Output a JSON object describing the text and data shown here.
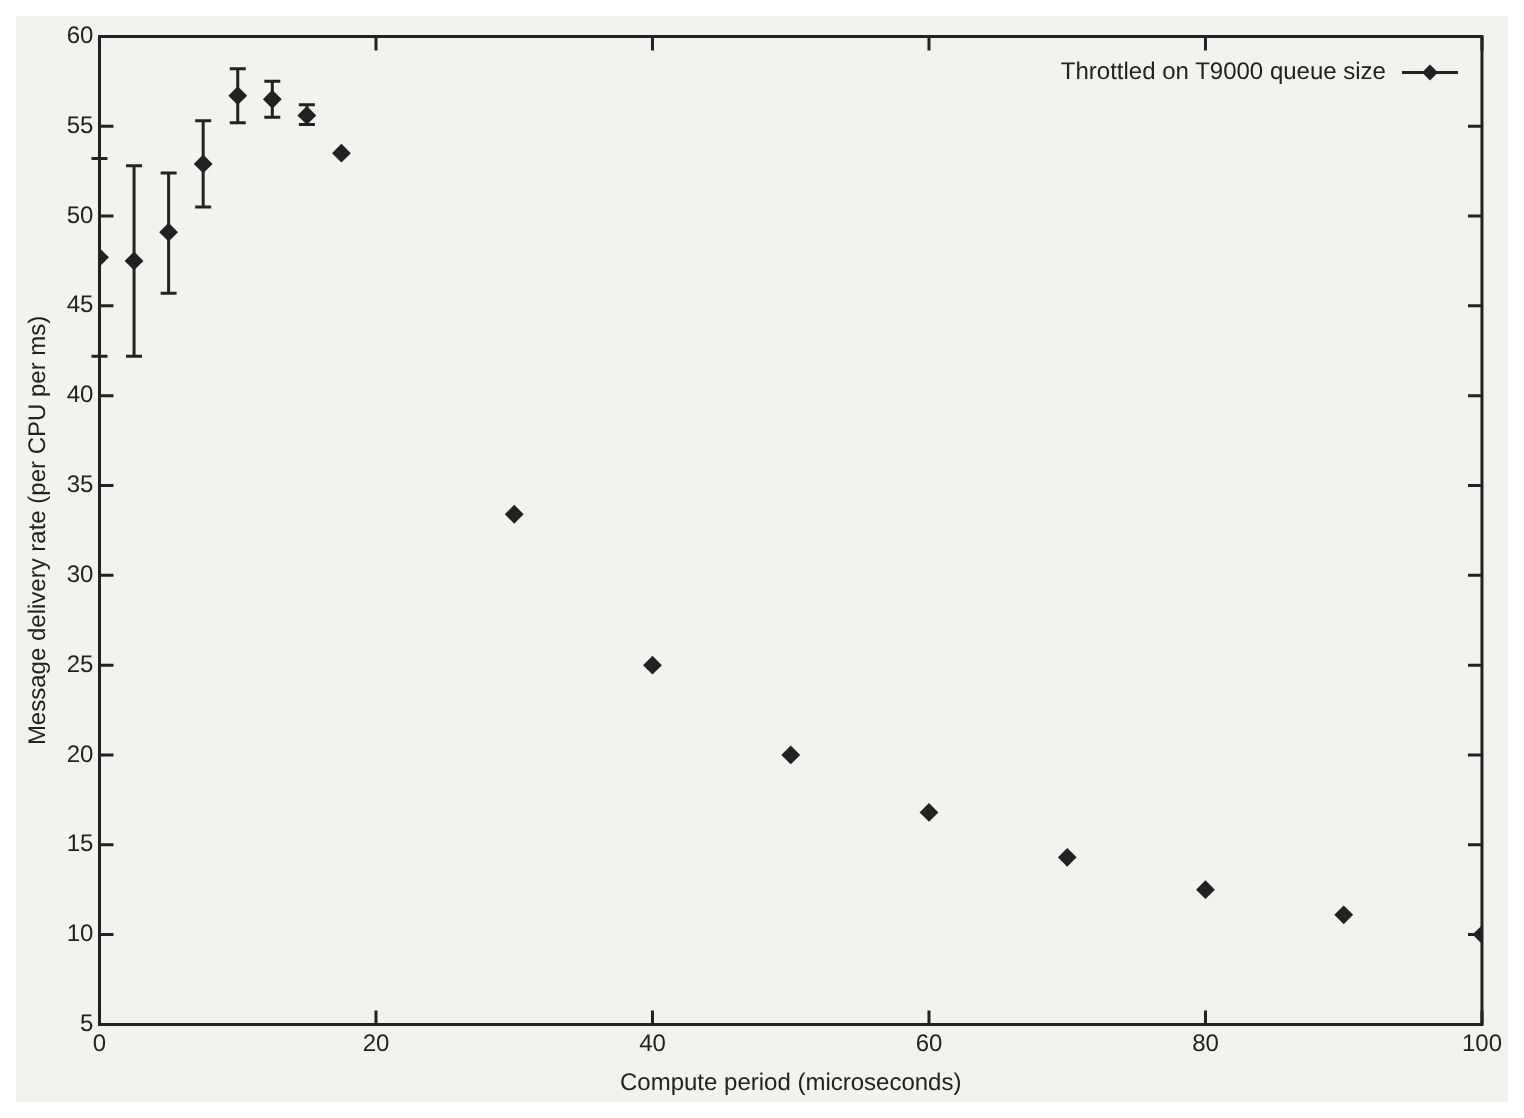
{
  "chart_data": {
    "type": "scatter",
    "xlabel": "Compute period (microseconds)",
    "ylabel": "Message delivery rate (per CPU per ms)",
    "x": [
      0,
      2.5,
      5,
      7.5,
      10,
      12.5,
      15,
      17.5,
      30,
      40,
      50,
      60,
      70,
      80,
      90,
      100
    ],
    "series": [
      {
        "name": "Throttled on T9000 queue size",
        "color": "#222222",
        "values": [
          47.7,
          47.5,
          49.1,
          52.9,
          56.7,
          56.5,
          55.6,
          53.5,
          33.4,
          25,
          20,
          16.8,
          14.3,
          12.5,
          11.1,
          10
        ],
        "errors": [
          5.5,
          5.3,
          [
            45.7,
            52.4
          ],
          [
            50.5,
            55.3
          ],
          [
            55.2,
            58.2
          ],
          [
            55.5,
            57.5
          ],
          [
            55.1,
            56.2
          ],
          null,
          null,
          null,
          null,
          null,
          null,
          null,
          null,
          null
        ]
      }
    ],
    "xlim": [
      0,
      100
    ],
    "xticks": [
      0,
      20,
      40,
      60,
      80,
      100
    ],
    "ylim": [
      5,
      60
    ],
    "yticks": [
      5,
      10,
      15,
      20,
      25,
      30,
      35,
      40,
      45,
      50,
      55,
      60
    ],
    "grid": false,
    "legend": "top right",
    "marker": "diamond"
  }
}
